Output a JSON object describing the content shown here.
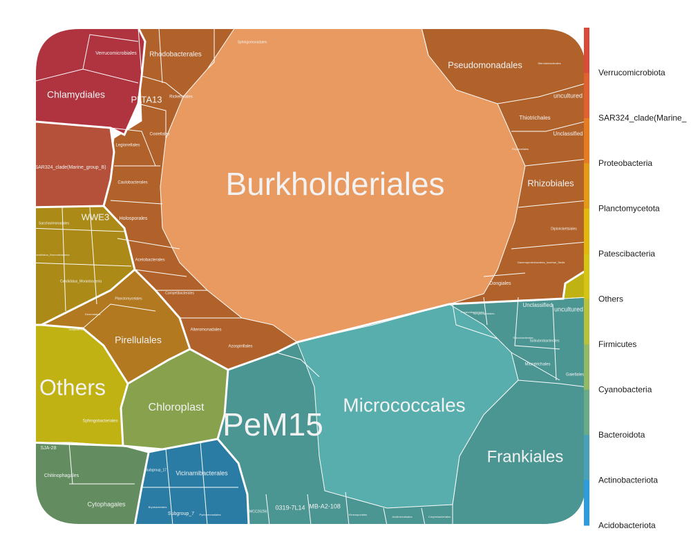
{
  "chart_data": {
    "type": "voronoi-treemap",
    "colors": {
      "Verrucomicrobiota": "#b03440",
      "SAR324_clade(Marine_group_B)": "#b5503a",
      "Proteobacteria": "#b1622b",
      "Planctomycetota": "#b27920",
      "Patescibacteria": "#ab8a17",
      "Others": "#c1b213",
      "Firmicutes": "#a8b52c",
      "Cyanobacteria": "#87a14c",
      "Bacteroidota": "#638d60",
      "Actinobacteriota": "#4b9693",
      "Acidobacteriota": "#2a7ca5"
    },
    "legend": [
      {
        "label": "Verrucomicrobiota",
        "color": "#d94a37"
      },
      {
        "label": "SAR324_clade(Marine_",
        "color": "#e06030"
      },
      {
        "label": "Proteobacteria",
        "color": "#e77b22"
      },
      {
        "label": "Planctomycetota",
        "color": "#e59a16"
      },
      {
        "label": "Patescibacteria",
        "color": "#e2b70e"
      },
      {
        "label": "Others",
        "color": "#d6c414"
      },
      {
        "label": "Firmicutes",
        "color": "#b8c13a"
      },
      {
        "label": "Cyanobacteria",
        "color": "#93b964"
      },
      {
        "label": "Bacteroidota",
        "color": "#6aab87"
      },
      {
        "label": "Actinobacteriota",
        "color": "#49a0b9"
      },
      {
        "label": "Acidobacteriota",
        "color": "#2e9be0"
      }
    ],
    "labels": [
      {
        "text": "Burkholderiales",
        "phylum": "Proteobacteria"
      },
      {
        "text": "PeM15",
        "phylum": "Actinobacteriota"
      },
      {
        "text": "Micrococcales",
        "phylum": "Actinobacteriota"
      },
      {
        "text": "Frankiales",
        "phylum": "Actinobacteriota"
      },
      {
        "text": "Others",
        "phylum": "Others"
      },
      {
        "text": "Chloroplast",
        "phylum": "Cyanobacteria"
      },
      {
        "text": "Pirellulales",
        "phylum": "Planctomycetota"
      },
      {
        "text": "Chlamydiales",
        "phylum": "Verrucomicrobiota"
      },
      {
        "text": "Pseudomonadales",
        "phylum": "Proteobacteria"
      },
      {
        "text": "Rhizobiales",
        "phylum": "Proteobacteria"
      },
      {
        "text": "PLTA13",
        "phylum": "Proteobacteria"
      },
      {
        "text": "WWE3",
        "phylum": "Patescibacteria"
      },
      {
        "text": "Rhodobacterales",
        "phylum": "Proteobacteria"
      },
      {
        "text": "Verrucomicrobiales",
        "phylum": "Verrucomicrobiota"
      },
      {
        "text": "SAR324_clade(Marine_group_B)",
        "phylum": "SAR324_clade(Marine_group_B)"
      },
      {
        "text": "Sphingomonadales",
        "phylum": "Proteobacteria"
      },
      {
        "text": "Rickettsiales",
        "phylum": "Proteobacteria"
      },
      {
        "text": "Coxiellales",
        "phylum": "Proteobacteria"
      },
      {
        "text": "Legionellales",
        "phylum": "Proteobacteria"
      },
      {
        "text": "Caulobacterales",
        "phylum": "Proteobacteria"
      },
      {
        "text": "Holosporales",
        "phylum": "Proteobacteria"
      },
      {
        "text": "Acetobacterales",
        "phylum": "Proteobacteria"
      },
      {
        "text": "Competibacterales",
        "phylum": "Proteobacteria"
      },
      {
        "text": "Alteromonadales",
        "phylum": "Proteobacteria"
      },
      {
        "text": "Azospirillales",
        "phylum": "Proteobacteria"
      },
      {
        "text": "Dongiales",
        "phylum": "Proteobacteria"
      },
      {
        "text": "Thiotrichales",
        "phylum": "Proteobacteria"
      },
      {
        "text": "uncultured",
        "phylum": "Proteobacteria"
      },
      {
        "text": "Unclassified",
        "phylum": "Proteobacteria"
      },
      {
        "text": "Steroidobacterales",
        "phylum": "Proteobacteria"
      },
      {
        "text": "Reyranellales",
        "phylum": "Proteobacteria"
      },
      {
        "text": "Diplorickettsiales",
        "phylum": "Proteobacteria"
      },
      {
        "text": "Gammaproteobacteria_Incertae_Sedis",
        "phylum": "Proteobacteria"
      },
      {
        "text": "Planctomycetales",
        "phylum": "Planctomycetota"
      },
      {
        "text": "Gemmatales",
        "phylum": "Planctomycetota"
      },
      {
        "text": "Isosphaerales",
        "phylum": "Planctomycetota"
      },
      {
        "text": "Saccharimonadales",
        "phylum": "Patescibacteria"
      },
      {
        "text": "Candidatus_Moranbacteria",
        "phylum": "Patescibacteria"
      },
      {
        "text": "Candidatus_Nomurabacteria",
        "phylum": "Patescibacteria"
      },
      {
        "text": "Sphingobacteriales",
        "phylum": "Bacteroidota"
      },
      {
        "text": "Chitinophagales",
        "phylum": "Bacteroidota"
      },
      {
        "text": "Cytophagales",
        "phylum": "Bacteroidota"
      },
      {
        "text": "SJA-28",
        "phylum": "Bacteroidota"
      },
      {
        "text": "Vicinamibacterales",
        "phylum": "Acidobacteriota"
      },
      {
        "text": "Subgroup_17",
        "phylum": "Acidobacteriota"
      },
      {
        "text": "Subgroup_7",
        "phylum": "Acidobacteriota"
      },
      {
        "text": "Bryobacterales",
        "phylum": "Acidobacteriota"
      },
      {
        "text": "Pyrinomonadales",
        "phylum": "Acidobacteriota"
      },
      {
        "text": "0319-7L14",
        "phylum": "Actinobacteriota"
      },
      {
        "text": "MB-A2-108",
        "phylum": "Actinobacteriota"
      },
      {
        "text": "IMCC26256",
        "phylum": "Actinobacteriota"
      },
      {
        "text": "Microtrichales",
        "phylum": "Actinobacteriota"
      },
      {
        "text": "Unclassified",
        "phylum": "Actinobacteriota"
      },
      {
        "text": "uncultured",
        "phylum": "Actinobacteriota"
      },
      {
        "text": "Gaiellales",
        "phylum": "Actinobacteriota"
      },
      {
        "text": "Solirubrobacterales",
        "phylum": "Actinobacteriota"
      },
      {
        "text": "Rubrobacterales",
        "phylum": "Actinobacteriota"
      },
      {
        "text": "Streptomycetales",
        "phylum": "Actinobacteriota"
      },
      {
        "text": "Propionibacteriales",
        "phylum": "Actinobacteriota"
      },
      {
        "text": "Kineosporiales",
        "phylum": "Actinobacteriota"
      },
      {
        "text": "Acidimicrobiales",
        "phylum": "Actinobacteriota"
      },
      {
        "text": "Corynebacteriales",
        "phylum": "Actinobacteriota"
      }
    ]
  }
}
